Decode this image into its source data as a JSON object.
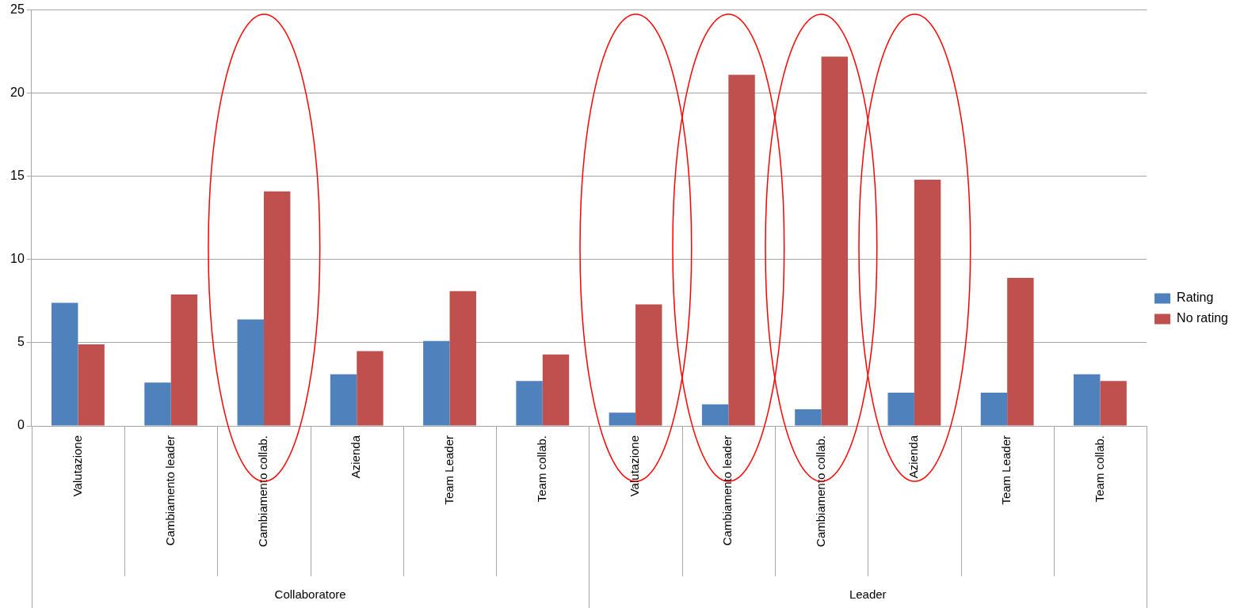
{
  "chart_data": {
    "type": "bar",
    "categories": [
      "Valutazione",
      "Cambiamento leader",
      "Cambiamento collab.",
      "Azienda",
      "Team Leader",
      "Team collab.",
      "Valutazione",
      "Cambiamento leader",
      "Cambiamento collab.",
      "Azienda",
      "Team Leader",
      "Team collab."
    ],
    "series": [
      {
        "name": "Rating",
        "color": "#4f81bd",
        "values": [
          7.4,
          2.6,
          6.4,
          3.1,
          5.1,
          2.7,
          0.8,
          1.3,
          1.0,
          2.0,
          2.0,
          3.1
        ]
      },
      {
        "name": "No rating",
        "color": "#c0504d",
        "values": [
          4.9,
          7.9,
          14.1,
          4.5,
          8.1,
          4.3,
          7.3,
          21.1,
          22.2,
          14.8,
          8.9,
          2.7
        ]
      }
    ],
    "annotations": [
      "Collaboratore",
      "Leader"
    ],
    "ylim": [
      0,
      25
    ],
    "yticks": [
      0,
      5,
      10,
      15,
      20,
      25
    ],
    "grid": "y",
    "legend": "right"
  }
}
